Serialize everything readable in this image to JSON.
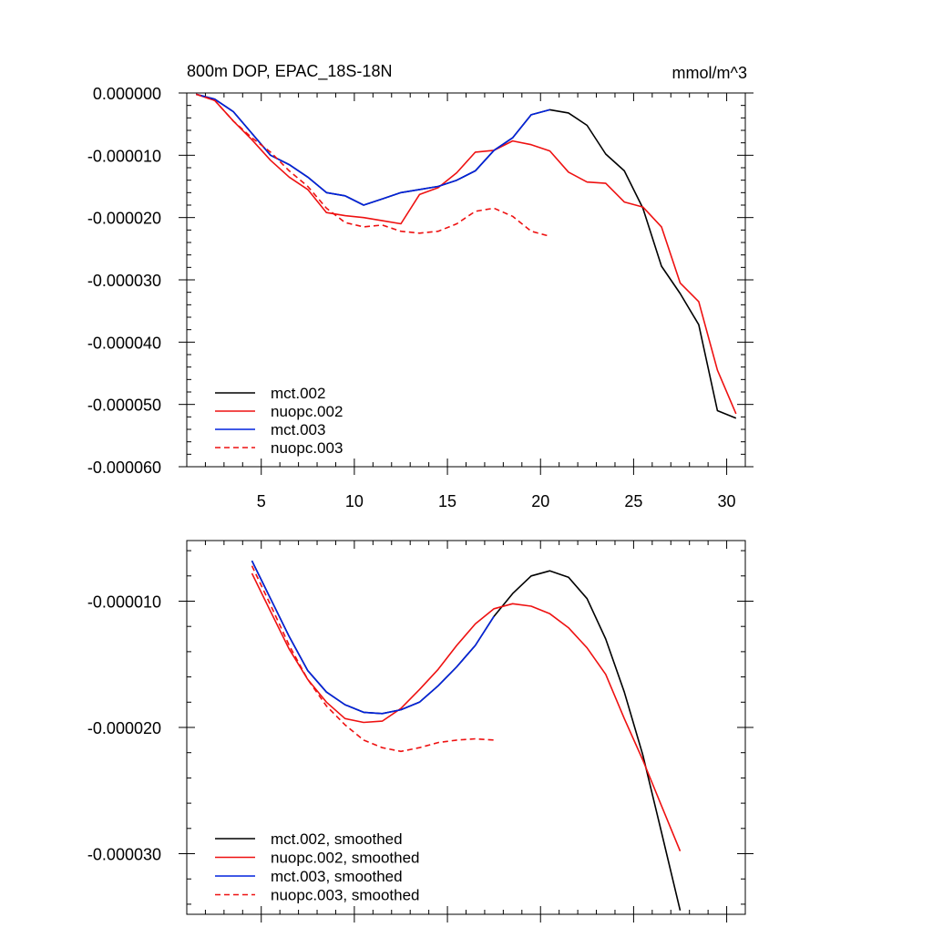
{
  "chart_data": [
    {
      "type": "line",
      "title": "800m DOP, EPAC_18S-18N",
      "units": "mmol/m^3",
      "xlim": [
        1,
        31
      ],
      "ylim": [
        -6e-05,
        0
      ],
      "xticks": [
        5,
        10,
        15,
        20,
        25,
        30
      ],
      "xtick_labels": [
        "5",
        "10",
        "15",
        "20",
        "25",
        "30"
      ],
      "yticks": [
        0,
        -1e-05,
        -2e-05,
        -3e-05,
        -4e-05,
        -5e-05,
        -6e-05
      ],
      "ytick_labels": [
        "0.000000",
        "-0.000010",
        "-0.000020",
        "-0.000030",
        "-0.000040",
        "-0.000050",
        "-0.000060"
      ],
      "legend_position": "bottom-left",
      "series": [
        {
          "name": "mct.002",
          "color": "#000000",
          "dash": "solid",
          "x": [
            1.5,
            2.5,
            3.5,
            4.5,
            5.5,
            6.5,
            7.5,
            8.5,
            9.5,
            10.5,
            11.5,
            12.5,
            13.5,
            14.5,
            15.5,
            16.5,
            17.5,
            18.5,
            19.5,
            20.5,
            21.5,
            22.5,
            23.5,
            24.5,
            25.5,
            26.5,
            27.5,
            28.5,
            29.5,
            30.5
          ],
          "y": [
            -2e-07,
            -1e-06,
            -3e-06,
            -6.5e-06,
            -1e-05,
            -1.15e-05,
            -1.35e-05,
            -1.6e-05,
            -1.65e-05,
            -1.8e-05,
            -1.7e-05,
            -1.6e-05,
            -1.55e-05,
            -1.5e-05,
            -1.4e-05,
            -1.25e-05,
            -9.2e-06,
            -7.2e-06,
            -3.5e-06,
            -2.7e-06,
            -3.2e-06,
            -5.2e-06,
            -9.8e-06,
            -1.25e-05,
            -1.85e-05,
            -2.78e-05,
            -3.22e-05,
            -3.72e-05,
            -5.1e-05,
            -5.22e-05
          ]
        },
        {
          "name": "nuopc.002",
          "color": "#ee1111",
          "dash": "solid",
          "x": [
            1.5,
            2.5,
            3.5,
            4.5,
            5.5,
            6.5,
            7.5,
            8.5,
            9.5,
            10.5,
            11.5,
            12.5,
            13.5,
            14.5,
            15.5,
            16.5,
            17.5,
            18.5,
            19.5,
            20.5,
            21.5,
            22.5,
            23.5,
            24.5,
            25.5,
            26.5,
            27.5,
            28.5,
            29.5,
            30.5
          ],
          "y": [
            -2e-07,
            -1.2e-06,
            -4.5e-06,
            -7.5e-06,
            -1.08e-05,
            -1.35e-05,
            -1.55e-05,
            -1.92e-05,
            -1.97e-05,
            -2e-05,
            -2.05e-05,
            -2.1e-05,
            -1.63e-05,
            -1.52e-05,
            -1.28e-05,
            -9.5e-06,
            -9.2e-06,
            -7.7e-06,
            -8.3e-06,
            -9.3e-06,
            -1.27e-05,
            -1.43e-05,
            -1.45e-05,
            -1.75e-05,
            -1.83e-05,
            -2.15e-05,
            -3.05e-05,
            -3.35e-05,
            -4.45e-05,
            -5.15e-05
          ]
        },
        {
          "name": "mct.003",
          "color": "#0022dd",
          "dash": "solid",
          "x": [
            1.5,
            2.5,
            3.5,
            4.5,
            5.5,
            6.5,
            7.5,
            8.5,
            9.5,
            10.5,
            11.5,
            12.5,
            13.5,
            14.5,
            15.5,
            16.5,
            17.5,
            18.5,
            19.5,
            20.5
          ],
          "y": [
            -2e-07,
            -1e-06,
            -3e-06,
            -6.5e-06,
            -1e-05,
            -1.15e-05,
            -1.35e-05,
            -1.6e-05,
            -1.65e-05,
            -1.8e-05,
            -1.7e-05,
            -1.6e-05,
            -1.55e-05,
            -1.5e-05,
            -1.4e-05,
            -1.25e-05,
            -9.2e-06,
            -7.2e-06,
            -3.5e-06,
            -2.7e-06
          ]
        },
        {
          "name": "nuopc.003",
          "color": "#ee1111",
          "dash": "dashed",
          "x": [
            1.5,
            2.5,
            3.5,
            4.5,
            5.5,
            6.5,
            7.5,
            8.5,
            9.5,
            10.5,
            11.5,
            12.5,
            13.5,
            14.5,
            15.5,
            16.5,
            17.5,
            18.5,
            19.5,
            20.5
          ],
          "y": [
            -2e-07,
            -1.2e-06,
            -4.5e-06,
            -7.2e-06,
            -9.5e-06,
            -1.25e-05,
            -1.5e-05,
            -1.85e-05,
            -2.08e-05,
            -2.15e-05,
            -2.12e-05,
            -2.22e-05,
            -2.25e-05,
            -2.22e-05,
            -2.1e-05,
            -1.9e-05,
            -1.85e-05,
            -1.98e-05,
            -2.22e-05,
            -2.3e-05
          ]
        }
      ]
    },
    {
      "type": "line",
      "title": "",
      "xlim": [
        1,
        31
      ],
      "ylim": [
        -3.48e-05,
        -5.2e-06
      ],
      "xticks": [
        5,
        10,
        15,
        20,
        25,
        30
      ],
      "yticks": [
        -1e-05,
        -2e-05,
        -3e-05
      ],
      "ytick_labels": [
        "-0.000010",
        "-0.000020",
        "-0.000030"
      ],
      "legend_position": "bottom-left",
      "series": [
        {
          "name": "mct.002, smoothed",
          "color": "#000000",
          "dash": "solid",
          "x": [
            4.5,
            5.5,
            6.5,
            7.5,
            8.5,
            9.5,
            10.5,
            11.5,
            12.5,
            13.5,
            14.5,
            15.5,
            16.5,
            17.5,
            18.5,
            19.5,
            20.5,
            21.5,
            22.5,
            23.5,
            24.5,
            25.5,
            26.5,
            27.5
          ],
          "y": [
            -6.8e-06,
            -9.8e-06,
            -1.28e-05,
            -1.55e-05,
            -1.72e-05,
            -1.82e-05,
            -1.88e-05,
            -1.89e-05,
            -1.86e-05,
            -1.8e-05,
            -1.67e-05,
            -1.52e-05,
            -1.35e-05,
            -1.12e-05,
            -9.4e-06,
            -8e-06,
            -7.6e-06,
            -8.1e-06,
            -9.8e-06,
            -1.3e-05,
            -1.72e-05,
            -2.22e-05,
            -2.83e-05,
            -3.45e-05
          ]
        },
        {
          "name": "nuopc.002, smoothed",
          "color": "#ee1111",
          "dash": "solid",
          "x": [
            4.5,
            5.5,
            6.5,
            7.5,
            8.5,
            9.5,
            10.5,
            11.5,
            12.5,
            13.5,
            14.5,
            15.5,
            16.5,
            17.5,
            18.5,
            19.5,
            20.5,
            21.5,
            22.5,
            23.5,
            24.5,
            25.5,
            26.5,
            27.5
          ],
          "y": [
            -7.8e-06,
            -1.08e-05,
            -1.38e-05,
            -1.62e-05,
            -1.8e-05,
            -1.93e-05,
            -1.96e-05,
            -1.95e-05,
            -1.85e-05,
            -1.7e-05,
            -1.54e-05,
            -1.35e-05,
            -1.18e-05,
            -1.06e-05,
            -1.02e-05,
            -1.04e-05,
            -1.1e-05,
            -1.21e-05,
            -1.37e-05,
            -1.58e-05,
            -1.93e-05,
            -2.26e-05,
            -2.62e-05,
            -2.98e-05
          ]
        },
        {
          "name": "mct.003, smoothed",
          "color": "#0022dd",
          "dash": "solid",
          "x": [
            4.5,
            5.5,
            6.5,
            7.5,
            8.5,
            9.5,
            10.5,
            11.5,
            12.5,
            13.5,
            14.5,
            15.5,
            16.5,
            17.5
          ],
          "y": [
            -6.8e-06,
            -9.8e-06,
            -1.28e-05,
            -1.55e-05,
            -1.72e-05,
            -1.82e-05,
            -1.88e-05,
            -1.89e-05,
            -1.86e-05,
            -1.8e-05,
            -1.67e-05,
            -1.52e-05,
            -1.35e-05,
            -1.12e-05
          ]
        },
        {
          "name": "nuopc.003, smoothed",
          "color": "#ee1111",
          "dash": "dashed",
          "x": [
            4.5,
            5.5,
            6.5,
            7.5,
            8.5,
            9.5,
            10.5,
            11.5,
            12.5,
            13.5,
            14.5,
            15.5,
            16.5,
            17.5
          ],
          "y": [
            -7.2e-06,
            -1.03e-05,
            -1.35e-05,
            -1.62e-05,
            -1.83e-05,
            -1.98e-05,
            -2.1e-05,
            -2.16e-05,
            -2.19e-05,
            -2.16e-05,
            -2.12e-05,
            -2.1e-05,
            -2.09e-05,
            -2.1e-05
          ]
        }
      ]
    }
  ]
}
